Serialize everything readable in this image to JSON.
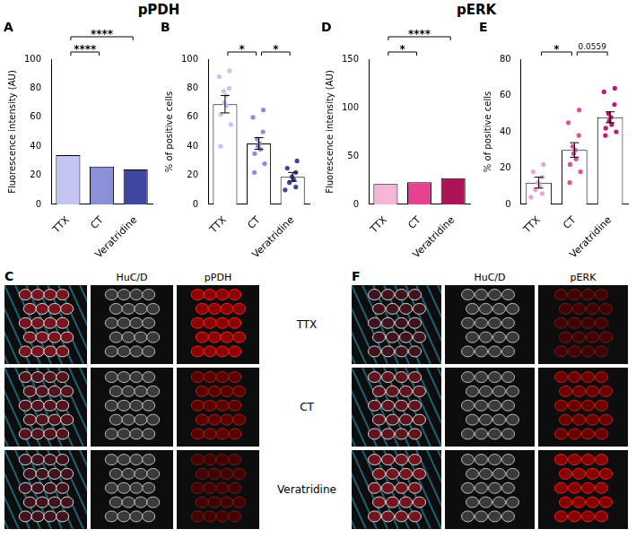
{
  "titles": [
    "pPDH",
    "pERK"
  ],
  "chart_data": [
    {
      "panel": "A",
      "type": "bar",
      "categories": [
        "TTX",
        "CT",
        "Veratridine"
      ],
      "values": [
        34,
        26,
        24
      ],
      "colors": [
        "#c3c6f2",
        "#8a8fd8",
        "#40459f"
      ],
      "y_label": "Fluorescence intensity (AU)",
      "ylim": [
        0,
        100
      ],
      "yticks": [
        0,
        20,
        40,
        60,
        80,
        100
      ],
      "grid": false,
      "annotations": [
        {
          "from": "TTX",
          "to": "CT",
          "text": "****"
        },
        {
          "from": "TTX",
          "to": "Veratridine",
          "text": "****"
        }
      ]
    },
    {
      "panel": "B",
      "type": "bar",
      "categories": [
        "TTX",
        "CT",
        "Veratridine"
      ],
      "values": [
        69,
        42,
        19
      ],
      "errors": [
        6,
        4,
        3
      ],
      "points": [
        [
          92,
          88,
          80,
          78,
          75,
          70,
          68,
          62,
          55,
          40
        ],
        [
          65,
          60,
          50,
          45,
          42,
          40,
          38,
          35,
          28,
          22
        ],
        [
          30,
          25,
          22,
          19,
          17,
          15,
          12,
          10
        ]
      ],
      "colors": [
        "#c3c6f2",
        "#8a8fd8",
        "#40459f"
      ],
      "y_label": "% of positive cells",
      "ylim": [
        0,
        100
      ],
      "yticks": [
        0,
        20,
        40,
        60,
        80,
        100
      ],
      "grid": false,
      "annotations": [
        {
          "from": "TTX",
          "to": "CT",
          "text": "*"
        },
        {
          "from": "CT",
          "to": "Veratridine",
          "text": "*"
        }
      ]
    },
    {
      "panel": "D",
      "type": "bar",
      "categories": [
        "TTX",
        "CT",
        "Veratridine"
      ],
      "values": [
        21,
        23,
        27
      ],
      "colors": [
        "#f4b6d6",
        "#e6418f",
        "#ad1456"
      ],
      "y_label": "Fluorescence intensity (AU)",
      "ylim": [
        0,
        150
      ],
      "yticks": [
        0,
        50,
        100,
        150
      ],
      "grid": false,
      "annotations": [
        {
          "from": "TTX",
          "to": "CT",
          "text": "*"
        },
        {
          "from": "TTX",
          "to": "Veratridine",
          "text": "****"
        }
      ]
    },
    {
      "panel": "E",
      "type": "bar",
      "categories": [
        "TTX",
        "CT",
        "Veratridine"
      ],
      "values": [
        12,
        30,
        48
      ],
      "errors": [
        3,
        4,
        3
      ],
      "points": [
        [
          22,
          18,
          15,
          12,
          10,
          8,
          6,
          4
        ],
        [
          52,
          45,
          38,
          32,
          30,
          28,
          25,
          22,
          18,
          12
        ],
        [
          64,
          62,
          55,
          50,
          48,
          46,
          44,
          42,
          40,
          38
        ]
      ],
      "colors": [
        "#e9a6d2",
        "#e04e97",
        "#c2177a"
      ],
      "y_label": "% of positive cells",
      "ylim": [
        0,
        80
      ],
      "yticks": [
        0,
        20,
        40,
        60,
        80
      ],
      "grid": false,
      "annotations": [
        {
          "from": "TTX",
          "to": "CT",
          "text": "*"
        },
        {
          "from": "CT",
          "to": "Veratridine",
          "text": "0.0559"
        }
      ]
    }
  ],
  "image_panels": [
    {
      "panel": "C",
      "columns": [
        null,
        "HuC/D",
        "pPDH"
      ]
    },
    {
      "panel": "F",
      "columns": [
        null,
        "HuC/D",
        "pERK"
      ]
    }
  ],
  "row_labels": [
    "TTX",
    "CT",
    "Veratridine"
  ]
}
